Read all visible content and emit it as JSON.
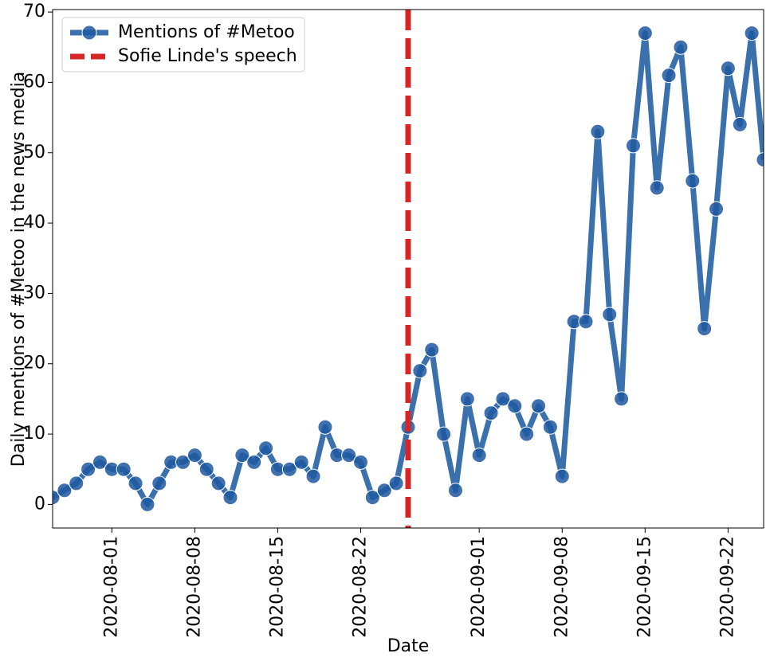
{
  "chart_data": {
    "type": "line",
    "y_label": "Daily mentions of #Metoo in the news media",
    "x_label": "Date",
    "x": [
      "2020-07-27",
      "2020-07-28",
      "2020-07-29",
      "2020-07-30",
      "2020-07-31",
      "2020-08-01",
      "2020-08-02",
      "2020-08-03",
      "2020-08-04",
      "2020-08-05",
      "2020-08-06",
      "2020-08-07",
      "2020-08-08",
      "2020-08-09",
      "2020-08-10",
      "2020-08-11",
      "2020-08-12",
      "2020-08-13",
      "2020-08-14",
      "2020-08-15",
      "2020-08-16",
      "2020-08-17",
      "2020-08-18",
      "2020-08-19",
      "2020-08-20",
      "2020-08-21",
      "2020-08-22",
      "2020-08-23",
      "2020-08-24",
      "2020-08-25",
      "2020-08-26",
      "2020-08-27",
      "2020-08-28",
      "2020-08-29",
      "2020-08-30",
      "2020-08-31",
      "2020-09-01",
      "2020-09-02",
      "2020-09-03",
      "2020-09-04",
      "2020-09-05",
      "2020-09-06",
      "2020-09-07",
      "2020-09-08",
      "2020-09-09",
      "2020-09-10",
      "2020-09-11",
      "2020-09-12",
      "2020-09-13",
      "2020-09-14",
      "2020-09-15",
      "2020-09-16",
      "2020-09-17",
      "2020-09-18",
      "2020-09-19",
      "2020-09-20",
      "2020-09-21",
      "2020-09-22",
      "2020-09-23",
      "2020-09-24",
      "2020-09-25"
    ],
    "series": [
      {
        "name": "Mentions of #Metoo",
        "color": "#3a70ac",
        "values": [
          1,
          2,
          3,
          5,
          6,
          5,
          5,
          3,
          0,
          3,
          6,
          6,
          7,
          5,
          3,
          1,
          7,
          6,
          8,
          5,
          5,
          6,
          4,
          11,
          7,
          7,
          6,
          1,
          2,
          3,
          11,
          19,
          22,
          10,
          2,
          15,
          7,
          13,
          15,
          14,
          10,
          14,
          11,
          4,
          26,
          26,
          53,
          27,
          15,
          51,
          67,
          45,
          61,
          65,
          46,
          25,
          42,
          62,
          54,
          67,
          49
        ]
      }
    ],
    "vline": {
      "x": "2020-08-26",
      "name": "Sofie Linde's speech",
      "color": "#d62728"
    },
    "xlim": [
      "2020-07-27",
      "2020-09-25"
    ],
    "xticks": [
      "2020-08-01",
      "2020-08-08",
      "2020-08-15",
      "2020-08-22",
      "2020-09-01",
      "2020-09-08",
      "2020-09-15",
      "2020-09-22"
    ],
    "ylim": [
      -3.35,
      70.35
    ],
    "yticks": [
      0,
      10,
      20,
      30,
      40,
      50,
      60,
      70
    ],
    "legend": "upper left"
  }
}
